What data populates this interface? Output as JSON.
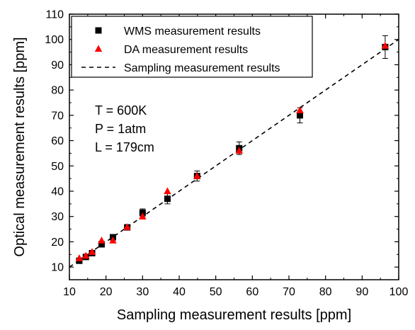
{
  "chart_data": {
    "type": "scatter",
    "xlabel": "Sampling measurement results [ppm]",
    "ylabel": "Optical measurement results [ppm]",
    "xlim": [
      10,
      100
    ],
    "ylim": [
      5,
      110
    ],
    "x_ticks": [
      10,
      20,
      30,
      40,
      50,
      60,
      70,
      80,
      90,
      100
    ],
    "y_ticks": [
      10,
      20,
      30,
      40,
      50,
      60,
      70,
      80,
      90,
      100,
      110
    ],
    "grid": false,
    "legend_position": "top-right",
    "series": [
      {
        "name": "WMS measurement results",
        "marker": "square",
        "color": "#000000",
        "points": [
          {
            "x": 12.7,
            "y": 12.5,
            "err": 0.8
          },
          {
            "x": 14.5,
            "y": 14.0,
            "err": 0.8
          },
          {
            "x": 16.2,
            "y": 15.5,
            "err": 0.8
          },
          {
            "x": 18.8,
            "y": 19.0,
            "err": 1.0
          },
          {
            "x": 21.9,
            "y": 21.8,
            "err": 1.0
          },
          {
            "x": 25.8,
            "y": 25.7,
            "err": 1.0
          },
          {
            "x": 30.0,
            "y": 31.5,
            "err": 1.5
          },
          {
            "x": 36.8,
            "y": 37.0,
            "err": 2.0
          },
          {
            "x": 44.9,
            "y": 46.0,
            "err": 2.0
          },
          {
            "x": 56.4,
            "y": 57.0,
            "err": 2.5
          },
          {
            "x": 73.0,
            "y": 70.0,
            "err": 3.0
          },
          {
            "x": 96.3,
            "y": 97.0,
            "err": 4.5
          }
        ]
      },
      {
        "name": "DA measurement results",
        "marker": "triangle",
        "color": "#ff0000",
        "points": [
          {
            "x": 12.7,
            "y": 13.5
          },
          {
            "x": 14.5,
            "y": 14.5
          },
          {
            "x": 16.2,
            "y": 16.0
          },
          {
            "x": 18.8,
            "y": 20.5
          },
          {
            "x": 21.9,
            "y": 20.5
          },
          {
            "x": 25.8,
            "y": 25.8
          },
          {
            "x": 30.0,
            "y": 30.0
          },
          {
            "x": 36.8,
            "y": 40.0
          },
          {
            "x": 44.9,
            "y": 46.0
          },
          {
            "x": 56.4,
            "y": 56.0
          },
          {
            "x": 73.0,
            "y": 72.0
          },
          {
            "x": 96.3,
            "y": 97.5
          }
        ]
      },
      {
        "name": "Sampling measurement results",
        "type": "line",
        "style": "dashed",
        "color": "#000000",
        "points": [
          {
            "x": 10,
            "y": 10
          },
          {
            "x": 100,
            "y": 100
          }
        ]
      }
    ],
    "annotations": [
      "T = 600K",
      "P = 1atm",
      "L = 179cm"
    ]
  }
}
